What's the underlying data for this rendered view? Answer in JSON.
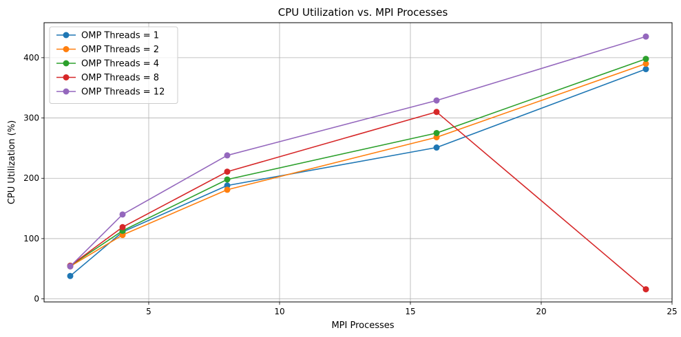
{
  "chart_data": {
    "type": "line",
    "title": "CPU Utilization vs. MPI Processes",
    "xlabel": "MPI Processes",
    "ylabel": "CPU Utilization (%)",
    "x": [
      2,
      4,
      8,
      16,
      24
    ],
    "xlim": [
      1,
      25
    ],
    "ylim": [
      -5,
      458
    ],
    "xticks": [
      5,
      10,
      15,
      20,
      25
    ],
    "yticks": [
      0,
      100,
      200,
      300,
      400
    ],
    "grid": true,
    "legend_position": "top-left",
    "series": [
      {
        "name": "OMP Threads = 1",
        "color": "#1f77b4",
        "values": [
          38,
          111,
          188,
          251,
          381
        ]
      },
      {
        "name": "OMP Threads = 2",
        "color": "#ff7f0e",
        "values": [
          54,
          106,
          181,
          268,
          390
        ]
      },
      {
        "name": "OMP Threads = 4",
        "color": "#2ca02c",
        "values": [
          55,
          113,
          198,
          275,
          398
        ]
      },
      {
        "name": "OMP Threads = 8",
        "color": "#d62728",
        "values": [
          55,
          119,
          211,
          310,
          16
        ]
      },
      {
        "name": "OMP Threads = 12",
        "color": "#9467bd",
        "values": [
          54,
          140,
          238,
          329,
          435
        ]
      }
    ]
  }
}
